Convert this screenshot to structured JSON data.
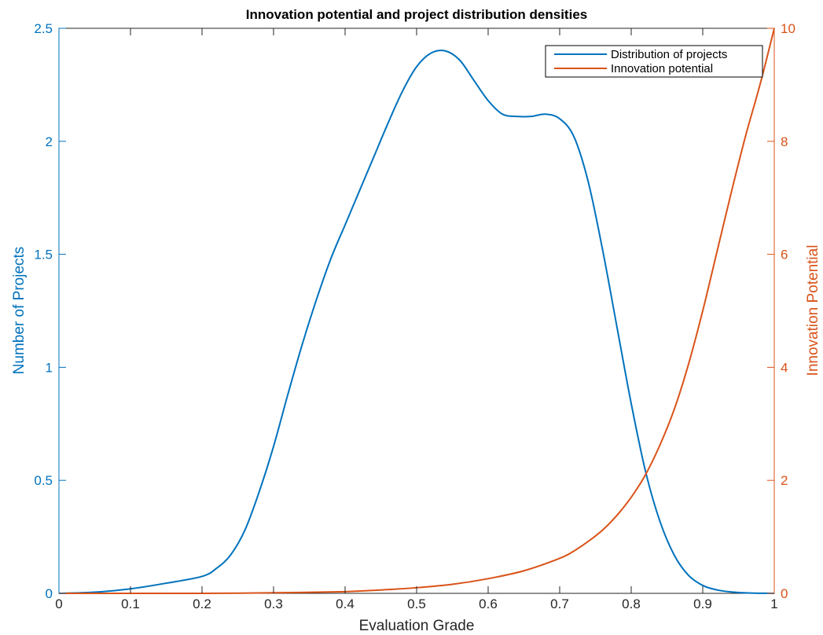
{
  "chart_data": {
    "type": "line",
    "title": "Innovation potential and project distribution densities",
    "xlabel": "Evaluation Grade",
    "ylabel_left": "Number of Projects",
    "ylabel_right": "Innovation Potential",
    "xlim": [
      0,
      1
    ],
    "ylim_left": [
      0,
      2.5
    ],
    "ylim_right": [
      0,
      10
    ],
    "x_ticks": [
      "0",
      "0.1",
      "0.2",
      "0.3",
      "0.4",
      "0.5",
      "0.6",
      "0.7",
      "0.8",
      "0.9",
      "1"
    ],
    "y_ticks_left": [
      "0",
      "0.5",
      "1",
      "1.5",
      "2",
      "2.5"
    ],
    "y_ticks_right": [
      "0",
      "2",
      "4",
      "6",
      "8",
      "10"
    ],
    "grid": false,
    "legend_position": "top-right",
    "colors": {
      "left_axis": "#0072BD",
      "right_axis": "#D95319",
      "axes": "#262626"
    },
    "series": [
      {
        "name": "Distribution of projects",
        "axis": "left",
        "color": "#0072BD",
        "x": [
          0,
          0.05,
          0.1,
          0.15,
          0.2,
          0.22,
          0.24,
          0.26,
          0.28,
          0.3,
          0.32,
          0.34,
          0.36,
          0.38,
          0.4,
          0.42,
          0.44,
          0.46,
          0.48,
          0.5,
          0.52,
          0.54,
          0.56,
          0.58,
          0.6,
          0.62,
          0.64,
          0.66,
          0.68,
          0.7,
          0.72,
          0.74,
          0.76,
          0.78,
          0.8,
          0.82,
          0.84,
          0.86,
          0.88,
          0.9,
          0.92,
          0.94,
          0.96,
          0.98,
          1.0
        ],
        "y": [
          0,
          0.005,
          0.02,
          0.045,
          0.075,
          0.11,
          0.17,
          0.28,
          0.45,
          0.65,
          0.88,
          1.1,
          1.3,
          1.48,
          1.63,
          1.78,
          1.93,
          2.08,
          2.22,
          2.33,
          2.39,
          2.4,
          2.36,
          2.27,
          2.18,
          2.12,
          2.11,
          2.11,
          2.12,
          2.1,
          2.02,
          1.82,
          1.52,
          1.18,
          0.84,
          0.54,
          0.32,
          0.17,
          0.08,
          0.035,
          0.015,
          0.006,
          0.002,
          0.0005,
          0
        ]
      },
      {
        "name": "Innovation potential",
        "axis": "right",
        "color": "#D95319",
        "x": [
          0,
          0.1,
          0.2,
          0.3,
          0.4,
          0.45,
          0.5,
          0.55,
          0.6,
          0.65,
          0.7,
          0.72,
          0.74,
          0.76,
          0.78,
          0.8,
          0.82,
          0.84,
          0.86,
          0.88,
          0.9,
          0.92,
          0.94,
          0.96,
          0.98,
          1.0
        ],
        "y": [
          0,
          0,
          0,
          0.01,
          0.03,
          0.06,
          0.1,
          0.16,
          0.26,
          0.4,
          0.62,
          0.75,
          0.92,
          1.12,
          1.38,
          1.7,
          2.1,
          2.62,
          3.25,
          4.05,
          5.0,
          6.05,
          7.1,
          8.1,
          9.0,
          10.0
        ]
      }
    ]
  }
}
